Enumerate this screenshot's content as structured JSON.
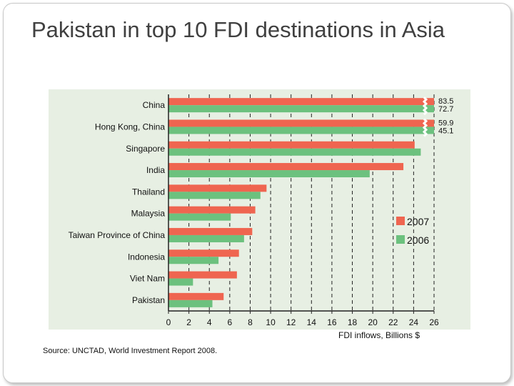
{
  "slide": {
    "title": "Pakistan in top 10 FDI destinations in Asia",
    "source": "Source: UNCTAD, World Investment Report 2008."
  },
  "chart_data": {
    "type": "bar",
    "orientation": "horizontal",
    "title": "",
    "xlabel": "FDI inflows, Billions $",
    "ylabel": "",
    "xlim": [
      0,
      26
    ],
    "xticks": [
      0,
      2,
      4,
      6,
      8,
      10,
      12,
      14,
      16,
      18,
      20,
      22,
      24,
      26
    ],
    "grid": "vertical dashed",
    "legend_position": "right",
    "categories": [
      "China",
      "Hong Kong, China",
      "Singapore",
      "India",
      "Thailand",
      "Malaysia",
      "Taiwan Province of China",
      "Indonesia",
      "Viet Nam",
      "Pakistan"
    ],
    "series": [
      {
        "name": "2007",
        "color": "#ef6550",
        "values": [
          83.5,
          59.9,
          24.1,
          23.0,
          9.6,
          8.5,
          8.2,
          6.9,
          6.7,
          5.4
        ]
      },
      {
        "name": "2006",
        "color": "#6cc17e",
        "values": [
          72.7,
          45.1,
          24.7,
          19.7,
          9.0,
          6.1,
          7.4,
          4.9,
          2.4,
          4.3
        ]
      }
    ],
    "data_labels": [
      {
        "category": "China",
        "series": "2007",
        "text": "83.5"
      },
      {
        "category": "China",
        "series": "2006",
        "text": "72.7"
      },
      {
        "category": "Hong Kong, China",
        "series": "2007",
        "text": "59.9"
      },
      {
        "category": "Hong Kong, China",
        "series": "2006",
        "text": "45.1"
      }
    ],
    "axis_break": true
  }
}
